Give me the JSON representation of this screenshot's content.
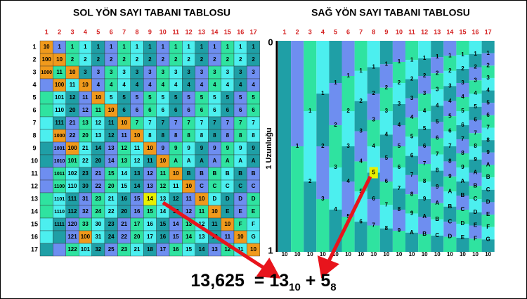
{
  "left": {
    "title": "SOL YÖN SAYI TABANI TABLOSU",
    "column_labels": [
      1,
      2,
      3,
      4,
      5,
      6,
      7,
      8,
      9,
      10,
      11,
      12,
      13,
      14,
      15,
      16,
      17
    ],
    "row_labels": [
      1,
      2,
      3,
      4,
      5,
      6,
      7,
      8,
      9,
      10,
      11,
      12,
      13,
      14,
      15,
      16,
      17
    ],
    "rows": [
      [
        "10",
        "1",
        "1",
        "1",
        "1",
        "1",
        "1",
        "1",
        "1",
        "1",
        "1",
        "1",
        "1",
        "1",
        "1",
        "1",
        "1"
      ],
      [
        "100",
        "10",
        "2",
        "2",
        "2",
        "2",
        "2",
        "2",
        "2",
        "2",
        "2",
        "2",
        "2",
        "2",
        "2",
        "2",
        "2"
      ],
      [
        "1000",
        "11",
        "10",
        "3",
        "3",
        "3",
        "3",
        "3",
        "3",
        "3",
        "3",
        "3",
        "3",
        "3",
        "3",
        "3",
        "3"
      ],
      [
        null,
        "100",
        "11",
        "10",
        "4",
        "4",
        "4",
        "4",
        "4",
        "4",
        "4",
        "4",
        "4",
        "4",
        "4",
        "4",
        "4"
      ],
      [
        null,
        "101",
        "12",
        "11",
        "10",
        "5",
        "5",
        "5",
        "5",
        "5",
        "5",
        "5",
        "5",
        "5",
        "5",
        "5",
        "5"
      ],
      [
        null,
        "110",
        "20",
        "12",
        "11",
        "10",
        "6",
        "6",
        "6",
        "6",
        "6",
        "6",
        "6",
        "6",
        "6",
        "6",
        "6"
      ],
      [
        null,
        "111",
        "21",
        "13",
        "12",
        "11",
        "10",
        "7",
        "7",
        "7",
        "7",
        "7",
        "7",
        "7",
        "7",
        "7",
        "7"
      ],
      [
        null,
        "1000",
        "22",
        "20",
        "13",
        "12",
        "11",
        "10",
        "8",
        "8",
        "8",
        "8",
        "8",
        "8",
        "8",
        "8",
        "8"
      ],
      [
        null,
        "1001",
        "100",
        "21",
        "14",
        "13",
        "12",
        "11",
        "10",
        "9",
        "9",
        "9",
        "9",
        "9",
        "9",
        "9",
        "9"
      ],
      [
        null,
        "1010",
        "101",
        "22",
        "20",
        "14",
        "13",
        "12",
        "11",
        "10",
        "A",
        "A",
        "A",
        "A",
        "A",
        "A",
        "A"
      ],
      [
        null,
        "1011",
        "102",
        "23",
        "21",
        "15",
        "14",
        "13",
        "12",
        "11",
        "10",
        "B",
        "B",
        "B",
        "B",
        "B",
        "B"
      ],
      [
        null,
        "1100",
        "110",
        "30",
        "22",
        "20",
        "15",
        "14",
        "13",
        "12",
        "11",
        "10",
        "C",
        "C",
        "C",
        "C",
        "C"
      ],
      [
        null,
        "1101",
        "111",
        "31",
        "23",
        "21",
        "16",
        "15",
        "14",
        "13",
        "12",
        "11",
        "10",
        "D",
        "D",
        "D",
        "D"
      ],
      [
        null,
        "1110",
        "112",
        "32",
        "24",
        "22",
        "20",
        "16",
        "15",
        "14",
        "13",
        "12",
        "11",
        "10",
        "E",
        "E",
        "E"
      ],
      [
        null,
        "1111",
        "120",
        "33",
        "30",
        "23",
        "21",
        "17",
        "16",
        "15",
        "14",
        "13",
        "12",
        "11",
        "10",
        "F",
        "F"
      ],
      [
        null,
        null,
        "121",
        "100",
        "31",
        "24",
        "22",
        "20",
        "17",
        "16",
        "15",
        "14",
        "13",
        "12",
        "11",
        "10",
        "G"
      ],
      [
        null,
        null,
        "122",
        "101",
        "32",
        "25",
        "23",
        "21",
        "18",
        "17",
        "16",
        "15",
        "14",
        "13",
        "12",
        "11",
        "10"
      ]
    ]
  },
  "right": {
    "title": "SAĞ YÖN SAYI TABANI TABLOSU",
    "column_labels": [
      1,
      2,
      3,
      4,
      5,
      6,
      7,
      8,
      9,
      10,
      11,
      12,
      13,
      14,
      15,
      16,
      17
    ],
    "y_top": "0",
    "y_bottom": "1",
    "y_label": "1 Uzunluğu",
    "digits": [
      [],
      [
        "1"
      ],
      [
        "1",
        "2"
      ],
      [
        "1",
        "2",
        "3"
      ],
      [
        "1",
        "2",
        "3",
        "4"
      ],
      [
        "1",
        "2",
        "3",
        "4",
        "5"
      ],
      [
        "1",
        "2",
        "3",
        "4",
        "5",
        "6"
      ],
      [
        "1",
        "2",
        "3",
        "4",
        "5",
        "6",
        "7"
      ],
      [
        "1",
        "2",
        "3",
        "4",
        "5",
        "6",
        "7",
        "8"
      ],
      [
        "1",
        "2",
        "3",
        "4",
        "5",
        "6",
        "7",
        "8",
        "9"
      ],
      [
        "1",
        "2",
        "3",
        "4",
        "5",
        "6",
        "7",
        "8",
        "9",
        "A"
      ],
      [
        "1",
        "2",
        "3",
        "4",
        "5",
        "6",
        "7",
        "8",
        "9",
        "A",
        "B"
      ],
      [
        "1",
        "2",
        "3",
        "4",
        "5",
        "6",
        "7",
        "8",
        "9",
        "A",
        "B",
        "C"
      ],
      [
        "1",
        "2",
        "3",
        "4",
        "5",
        "6",
        "7",
        "8",
        "9",
        "A",
        "B",
        "C",
        "D"
      ],
      [
        "1",
        "2",
        "3",
        "4",
        "5",
        "6",
        "7",
        "8",
        "9",
        "A",
        "B",
        "C",
        "D",
        "E"
      ],
      [
        "1",
        "2",
        "3",
        "4",
        "5",
        "6",
        "7",
        "8",
        "9",
        "A",
        "B",
        "C",
        "D",
        "E",
        "F"
      ],
      [
        "1",
        "2",
        "3",
        "4",
        "5",
        "6",
        "7",
        "8",
        "9",
        "A",
        "B",
        "C",
        "D",
        "E",
        "F",
        "G"
      ]
    ],
    "bottom_labels": [
      "10",
      "10",
      "10",
      "10",
      "10",
      "10",
      "10",
      "10",
      "10",
      "10",
      "10",
      "10",
      "10",
      "10",
      "10",
      "10",
      "10"
    ]
  },
  "formula": {
    "value": "13,625",
    "equals": "=",
    "integer": "13",
    "integer_base": "10",
    "plus": "+",
    "fraction": "5",
    "fraction_base": "8"
  }
}
